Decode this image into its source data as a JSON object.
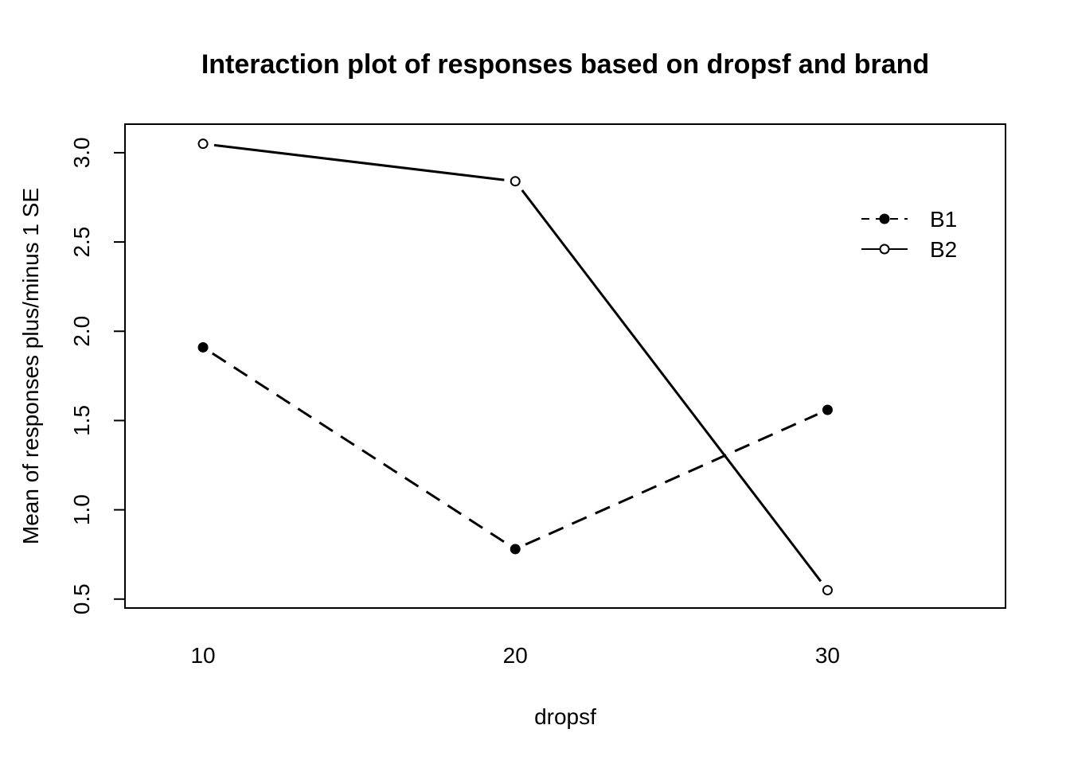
{
  "chart_data": {
    "type": "line",
    "title": "Interaction plot of responses based on dropsf and brand",
    "xlabel": "dropsf",
    "ylabel": "Mean of  responses plus/minus 1 SE",
    "categories": [
      "10",
      "20",
      "30"
    ],
    "x": [
      10,
      20,
      30
    ],
    "xlim": [
      7.5,
      35.7
    ],
    "ylim": [
      0.45,
      3.16
    ],
    "yticks": [
      "0.5",
      "1.0",
      "1.5",
      "2.0",
      "2.5",
      "3.0"
    ],
    "legend_position": "top-right",
    "grid": false,
    "series": [
      {
        "name": "B1",
        "values": [
          1.91,
          0.78,
          1.56
        ],
        "line_style": "dashed",
        "marker": "filled-circle",
        "color": "#000000"
      },
      {
        "name": "B2",
        "values": [
          3.05,
          2.84,
          0.55
        ],
        "line_style": "solid",
        "marker": "open-circle",
        "color": "#000000"
      }
    ]
  }
}
